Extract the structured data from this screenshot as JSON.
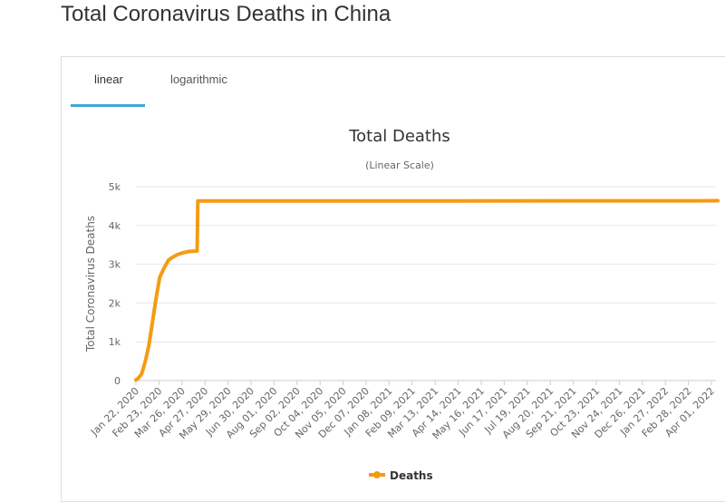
{
  "page": {
    "title": "Total Coronavirus Deaths in China"
  },
  "tabs": [
    {
      "label": "linear",
      "active": true
    },
    {
      "label": "logarithmic",
      "active": false
    }
  ],
  "colors": {
    "series": "#f39c12",
    "tab_active": "#3ca5d9"
  },
  "chart_data": {
    "type": "line",
    "title": "Total Deaths",
    "subtitle": "(Linear Scale)",
    "xlabel": "",
    "ylabel": "Total Coronavirus Deaths",
    "ylim": [
      0,
      5000
    ],
    "y_ticks": [
      0,
      1000,
      2000,
      3000,
      4000,
      5000
    ],
    "y_tick_labels": [
      "0",
      "1k",
      "2k",
      "3k",
      "4k",
      "5k"
    ],
    "x_tick_labels": [
      "Jan 22, 2020",
      "Feb 23, 2020",
      "Mar 26, 2020",
      "Apr 27, 2020",
      "May 29, 2020",
      "Jun 30, 2020",
      "Aug 01, 2020",
      "Sep 02, 2020",
      "Oct 04, 2020",
      "Nov 05, 2020",
      "Dec 07, 2020",
      "Jan 08, 2021",
      "Feb 09, 2021",
      "Mar 13, 2021",
      "Apr 14, 2021",
      "May 16, 2021",
      "Jun 17, 2021",
      "Jul 19, 2021",
      "Aug 20, 2021",
      "Sep 21, 2021",
      "Oct 23, 2021",
      "Nov 24, 2021",
      "Dec 26, 2021",
      "Jan 27, 2022",
      "Feb 28, 2022",
      "Apr 01, 2022"
    ],
    "grid": true,
    "legend": "bottom-center",
    "series": [
      {
        "name": "Deaths",
        "color": "#f39c12",
        "points": [
          [
            "2020-01-22",
            17
          ],
          [
            "2020-01-25",
            56
          ],
          [
            "2020-01-30",
            170
          ],
          [
            "2020-02-04",
            490
          ],
          [
            "2020-02-09",
            910
          ],
          [
            "2020-02-14",
            1520
          ],
          [
            "2020-02-19",
            2120
          ],
          [
            "2020-02-24",
            2660
          ],
          [
            "2020-03-01",
            2900
          ],
          [
            "2020-03-07",
            3100
          ],
          [
            "2020-03-13",
            3180
          ],
          [
            "2020-03-20",
            3250
          ],
          [
            "2020-03-28",
            3300
          ],
          [
            "2020-04-05",
            3330
          ],
          [
            "2020-04-16",
            3342
          ],
          [
            "2020-04-17",
            4632
          ],
          [
            "2022-03-15",
            4636
          ],
          [
            "2022-04-10",
            4638
          ]
        ]
      }
    ]
  }
}
